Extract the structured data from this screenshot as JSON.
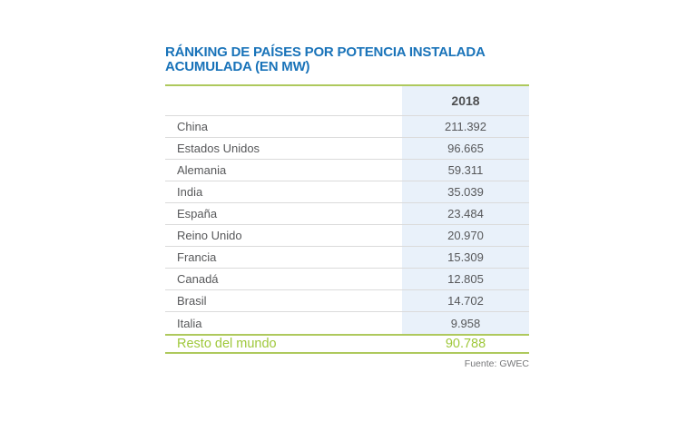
{
  "title_lines": [
    "RÁNKING DE PAÍSES POR POTENCIA INSTALADA",
    "ACUMULADA (EN MW)"
  ],
  "table": {
    "year_header": "2018",
    "rows": [
      {
        "country": "China",
        "value": "211.392"
      },
      {
        "country": "Estados Unidos",
        "value": "96.665"
      },
      {
        "country": "Alemania",
        "value": "59.311"
      },
      {
        "country": "India",
        "value": "35.039"
      },
      {
        "country": "España",
        "value": "23.484"
      },
      {
        "country": "Reino Unido",
        "value": "20.970"
      },
      {
        "country": "Francia",
        "value": "15.309"
      },
      {
        "country": "Canadá",
        "value": "12.805"
      },
      {
        "country": "Brasil",
        "value": "14.702"
      },
      {
        "country": "Italia",
        "value": "9.958"
      }
    ],
    "total_row": {
      "label": "Resto del mundo",
      "value": "90.788"
    }
  },
  "source": "Fuente: GWEC",
  "colors": {
    "title_blue": "#1973b9",
    "accent_green": "#aec95d",
    "total_text_green": "#9fc83b",
    "highlight_blue": "#e9f1fa",
    "body_text": "#57585a",
    "header_text": "#4e4f51",
    "separator_gray": "#dbdbdb",
    "source_gray": "#77787a"
  },
  "chart_data": {
    "type": "table",
    "title": "RÁNKING DE PAÍSES POR POTENCIA INSTALADA ACUMULADA (EN MW)",
    "unit": "MW",
    "column_header": "2018",
    "categories": [
      "China",
      "Estados Unidos",
      "Alemania",
      "India",
      "España",
      "Reino Unido",
      "Francia",
      "Canadá",
      "Brasil",
      "Italia",
      "Resto del mundo"
    ],
    "values": [
      211392,
      96665,
      59311,
      35039,
      23484,
      20970,
      15309,
      12805,
      14702,
      9958,
      90788
    ],
    "source": "Fuente: GWEC"
  }
}
